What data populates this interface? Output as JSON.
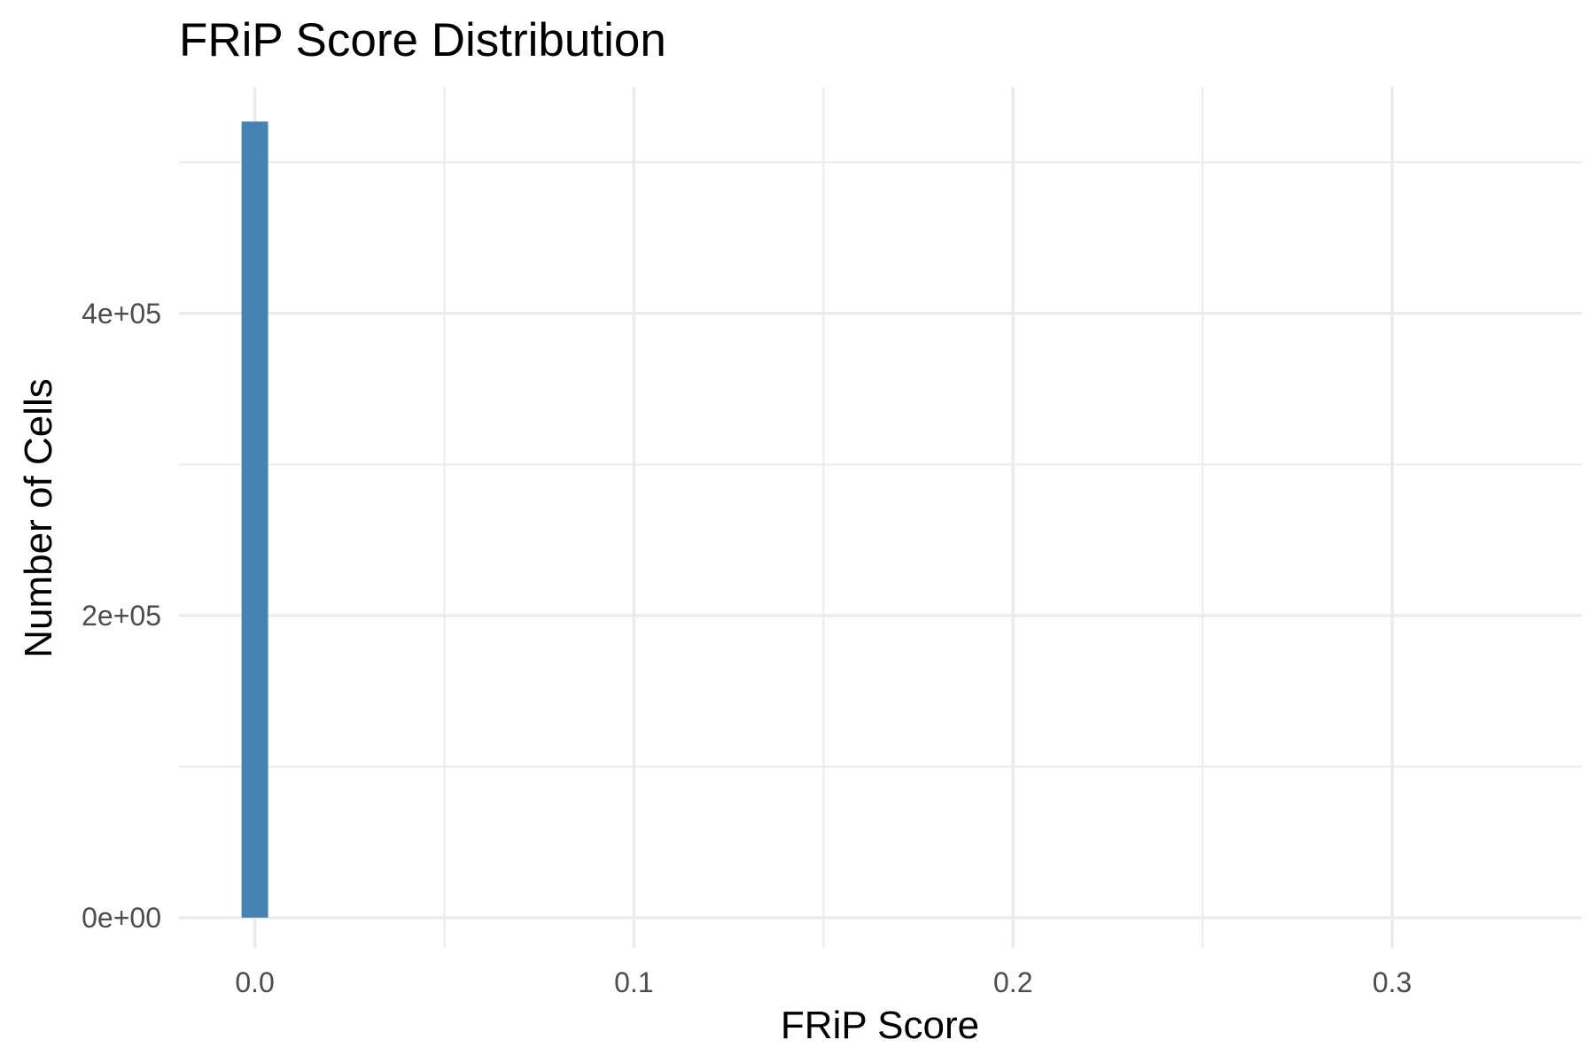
{
  "chart_data": {
    "type": "bar",
    "title": "FRiP Score Distribution",
    "xlabel": "FRiP Score",
    "ylabel": "Number of Cells",
    "x_ticks": [
      "0.0",
      "0.1",
      "0.2",
      "0.3"
    ],
    "y_ticks": [
      "0e+00",
      "2e+05",
      "4e+05"
    ],
    "xlim": [
      -0.02,
      0.35
    ],
    "ylim": [
      -20000,
      550000
    ],
    "grid": true,
    "bar_color": "#4682b4",
    "bins": [
      {
        "x_start": -0.0035,
        "x_end": 0.0035,
        "count": 527000
      }
    ]
  }
}
